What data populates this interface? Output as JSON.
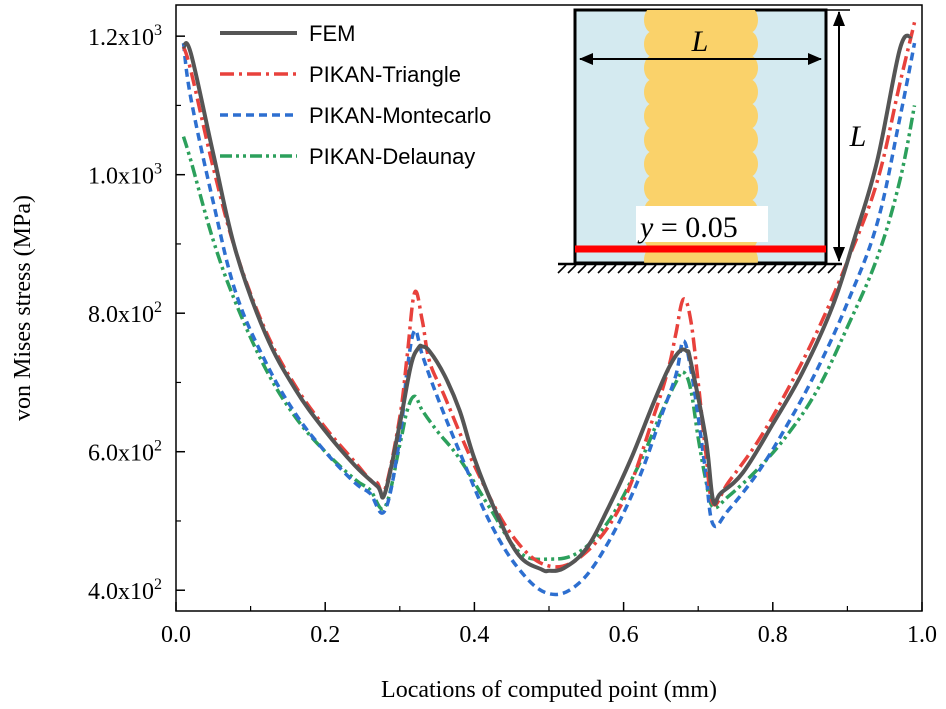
{
  "chart_data": {
    "type": "line",
    "xlabel": "Locations of computed point (mm)",
    "ylabel": "von Mises  stress (MPa)",
    "xlim": [
      0.0,
      1.0
    ],
    "ylim": [
      370,
      1245
    ],
    "x_ticks": [
      0.0,
      0.2,
      0.4,
      0.6,
      0.8,
      1.0
    ],
    "x_tick_labels": [
      "0.0",
      "0.2",
      "0.4",
      "0.6",
      "0.8",
      "1.0"
    ],
    "y_ticks": [
      400,
      600,
      800,
      1000,
      1200
    ],
    "y_tick_labels": [
      {
        "mant": "4.0x10",
        "exp": "2"
      },
      {
        "mant": "6.0x10",
        "exp": "2"
      },
      {
        "mant": "8.0x10",
        "exp": "2"
      },
      {
        "mant": "1.0x10",
        "exp": "3"
      },
      {
        "mant": "1.2x10",
        "exp": "3"
      }
    ],
    "grid": false,
    "legend_position": "top-left",
    "series": [
      {
        "name": "FEM",
        "color": "#555555",
        "dash": "solid",
        "x": [
          0.01,
          0.02,
          0.05,
          0.08,
          0.12,
          0.16,
          0.2,
          0.24,
          0.27,
          0.28,
          0.3,
          0.315,
          0.325,
          0.33,
          0.34,
          0.36,
          0.38,
          0.4,
          0.43,
          0.46,
          0.49,
          0.5,
          0.52,
          0.55,
          0.58,
          0.61,
          0.64,
          0.66,
          0.675,
          0.685,
          0.69,
          0.71,
          0.72,
          0.73,
          0.76,
          0.8,
          0.84,
          0.88,
          0.91,
          0.94,
          0.97,
          0.985
        ],
        "y": [
          1185,
          1175,
          1030,
          890,
          770,
          690,
          630,
          580,
          550,
          540,
          640,
          725,
          750,
          752,
          745,
          710,
          660,
          590,
          510,
          450,
          430,
          428,
          432,
          460,
          520,
          590,
          670,
          720,
          745,
          745,
          730,
          620,
          530,
          540,
          570,
          640,
          715,
          810,
          910,
          1020,
          1180,
          1200
        ]
      },
      {
        "name": "PIKAN-Triangle",
        "color": "#e8413c",
        "dash": "14,5,3,5",
        "x": [
          0.01,
          0.02,
          0.05,
          0.08,
          0.12,
          0.16,
          0.2,
          0.24,
          0.26,
          0.27,
          0.28,
          0.3,
          0.31,
          0.32,
          0.33,
          0.34,
          0.36,
          0.4,
          0.45,
          0.5,
          0.55,
          0.6,
          0.64,
          0.66,
          0.67,
          0.68,
          0.69,
          0.7,
          0.71,
          0.72,
          0.74,
          0.78,
          0.82,
          0.86,
          0.9,
          0.94,
          0.97,
          0.99
        ],
        "y": [
          1185,
          1150,
          1010,
          890,
          775,
          695,
          635,
          585,
          560,
          555,
          545,
          650,
          740,
          830,
          790,
          730,
          680,
          580,
          480,
          435,
          455,
          530,
          650,
          720,
          770,
          820,
          790,
          700,
          600,
          525,
          555,
          615,
          690,
          775,
          875,
          990,
          1130,
          1220
        ]
      },
      {
        "name": "PIKAN-Montecarlo",
        "color": "#2d6fd0",
        "dash": "8,5",
        "x": [
          0.01,
          0.02,
          0.05,
          0.08,
          0.12,
          0.16,
          0.2,
          0.24,
          0.26,
          0.28,
          0.3,
          0.31,
          0.32,
          0.33,
          0.35,
          0.38,
          0.42,
          0.46,
          0.5,
          0.54,
          0.58,
          0.62,
          0.65,
          0.67,
          0.68,
          0.69,
          0.7,
          0.71,
          0.72,
          0.74,
          0.78,
          0.82,
          0.86,
          0.9,
          0.94,
          0.97,
          0.99
        ],
        "y": [
          1190,
          1110,
          960,
          830,
          730,
          655,
          600,
          555,
          540,
          515,
          620,
          720,
          775,
          740,
          680,
          600,
          500,
          430,
          395,
          410,
          470,
          560,
          650,
          710,
          760,
          720,
          650,
          570,
          495,
          515,
          570,
          640,
          720,
          815,
          930,
          1080,
          1190
        ]
      },
      {
        "name": "PIKAN-Delaunay",
        "color": "#2ca05c",
        "dash": "12,4,3,4,3,4",
        "x": [
          0.01,
          0.02,
          0.05,
          0.08,
          0.12,
          0.16,
          0.2,
          0.24,
          0.26,
          0.28,
          0.3,
          0.31,
          0.32,
          0.33,
          0.35,
          0.38,
          0.42,
          0.46,
          0.5,
          0.54,
          0.58,
          0.62,
          0.65,
          0.67,
          0.68,
          0.69,
          0.7,
          0.71,
          0.72,
          0.74,
          0.78,
          0.82,
          0.86,
          0.9,
          0.94,
          0.97,
          0.99
        ],
        "y": [
          1055,
          1020,
          905,
          815,
          720,
          650,
          600,
          560,
          545,
          520,
          610,
          660,
          680,
          660,
          630,
          590,
          520,
          455,
          445,
          455,
          500,
          580,
          655,
          700,
          715,
          690,
          620,
          560,
          520,
          535,
          575,
          625,
          690,
          780,
          880,
          990,
          1100
        ]
      }
    ],
    "inset": {
      "width_label": "L",
      "height_label": "L",
      "line_label_var": "y",
      "line_label_value": " = 0.05",
      "colors": {
        "box_fill": "#d4eaf0",
        "inclusion": "#fad26a",
        "cut_line": "#ff0000"
      }
    }
  }
}
